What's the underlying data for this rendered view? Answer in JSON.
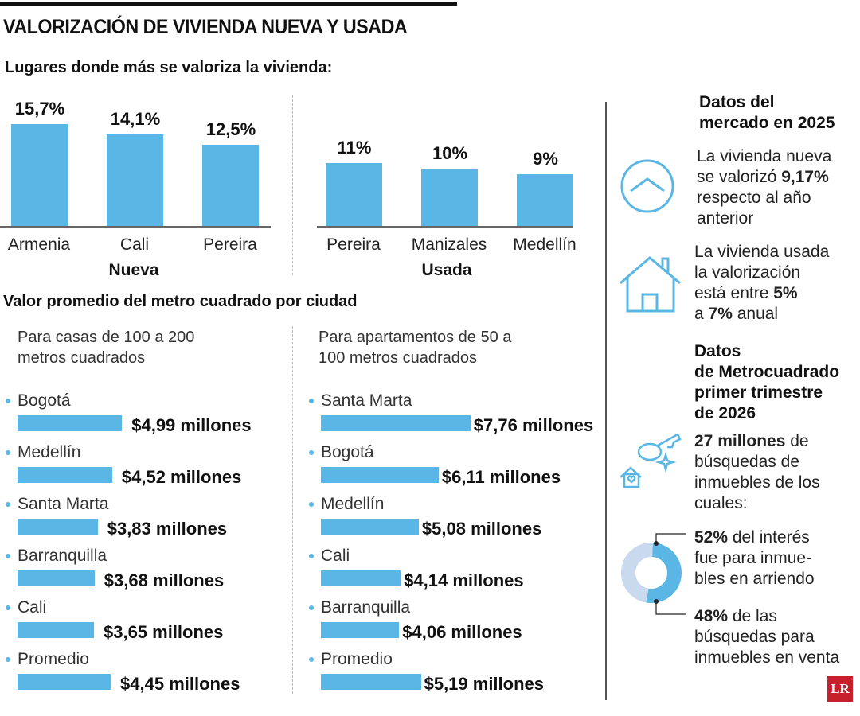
{
  "title": "VALORIZACIÓN DE VIVIENDA NUEVA Y USADA",
  "subtitle": "Lugares donde más se valoriza la vivienda:",
  "colors": {
    "bar": "#5ab7e5",
    "donut_light": "#c9d9ee",
    "logo": "#c8202a"
  },
  "chart_data": [
    {
      "type": "bar",
      "title": "Nueva",
      "categories": [
        "Armenia",
        "Cali",
        "Pereira"
      ],
      "values": [
        15.7,
        14.1,
        12.5
      ],
      "labels": [
        "15,7%",
        "14,1%",
        "12,5%"
      ],
      "unit": "%"
    },
    {
      "type": "bar",
      "title": "Usada",
      "categories": [
        "Pereira",
        "Manizales",
        "Medellín"
      ],
      "values": [
        11,
        10,
        9
      ],
      "labels": [
        "11%",
        "10%",
        "9%"
      ],
      "unit": "%"
    },
    {
      "type": "bar",
      "orientation": "horizontal",
      "title": "Para casas de 100 a 200 metros cuadrados",
      "categories": [
        "Bogotá",
        "Medellín",
        "Santa Marta",
        "Barranquilla",
        "Cali",
        "Promedio"
      ],
      "values": [
        4.99,
        4.52,
        3.83,
        3.68,
        3.65,
        4.45
      ],
      "labels": [
        "$4,99 millones",
        "$4,52 millones",
        "$3,83 millones",
        "$3,68 millones",
        "$3,65 millones",
        "$4,45 millones"
      ]
    },
    {
      "type": "bar",
      "orientation": "horizontal",
      "title": "Para apartamentos de 50 a 100 metros cuadrados",
      "categories": [
        "Santa Marta",
        "Bogotá",
        "Medellín",
        "Cali",
        "Barranquilla",
        "Promedio"
      ],
      "values": [
        7.76,
        6.11,
        5.08,
        4.14,
        4.06,
        5.19
      ],
      "labels": [
        "$7,76 millones",
        "$6,11 millones",
        "$5,08 millones",
        "$4,14 millones",
        "$4,06 millones",
        "$5,19 millones"
      ]
    },
    {
      "type": "pie",
      "donut": true,
      "categories": [
        "arriendo",
        "venta"
      ],
      "values": [
        52,
        48
      ]
    }
  ],
  "section2_title": "Valor promedio del metro cuadrado por ciudad",
  "left_note": [
    "Para casas de 100 a 200",
    "metros cuadrados"
  ],
  "right_note": [
    "Para apartamentos de 50 a",
    "100 metros cuadrados"
  ],
  "side": {
    "h1": [
      "Datos del",
      "mercado en 2025"
    ],
    "nueva": {
      "pre1": "La vivienda nueva",
      "pre2": "se valorizó ",
      "bold": "9,17%",
      "l3": "respecto al año",
      "l4": "anterior"
    },
    "usada": {
      "l1": "La vivienda usada",
      "l2": "la valorización",
      "l3": "está entre ",
      "b1": "5%",
      "l4a": "a ",
      "b2": "7%",
      "l4b": " anual"
    },
    "h2": [
      "Datos",
      "de Metrocuadrado",
      "primer trimestre",
      "de 2026"
    ],
    "busq": {
      "b": "27 millones",
      "t1": " de",
      "l2": "búsquedas de",
      "l3": "inmuebles de los",
      "l4": "cuales:"
    },
    "arr": {
      "b": "52%",
      "t1": " del interés",
      "l2": "fue para inmue-",
      "l3": "bles en arriendo"
    },
    "venta": {
      "b": "48%",
      "t1": " de las",
      "l2": "búsquedas para",
      "l3": "inmuebles en venta"
    },
    "logo": "LR"
  }
}
